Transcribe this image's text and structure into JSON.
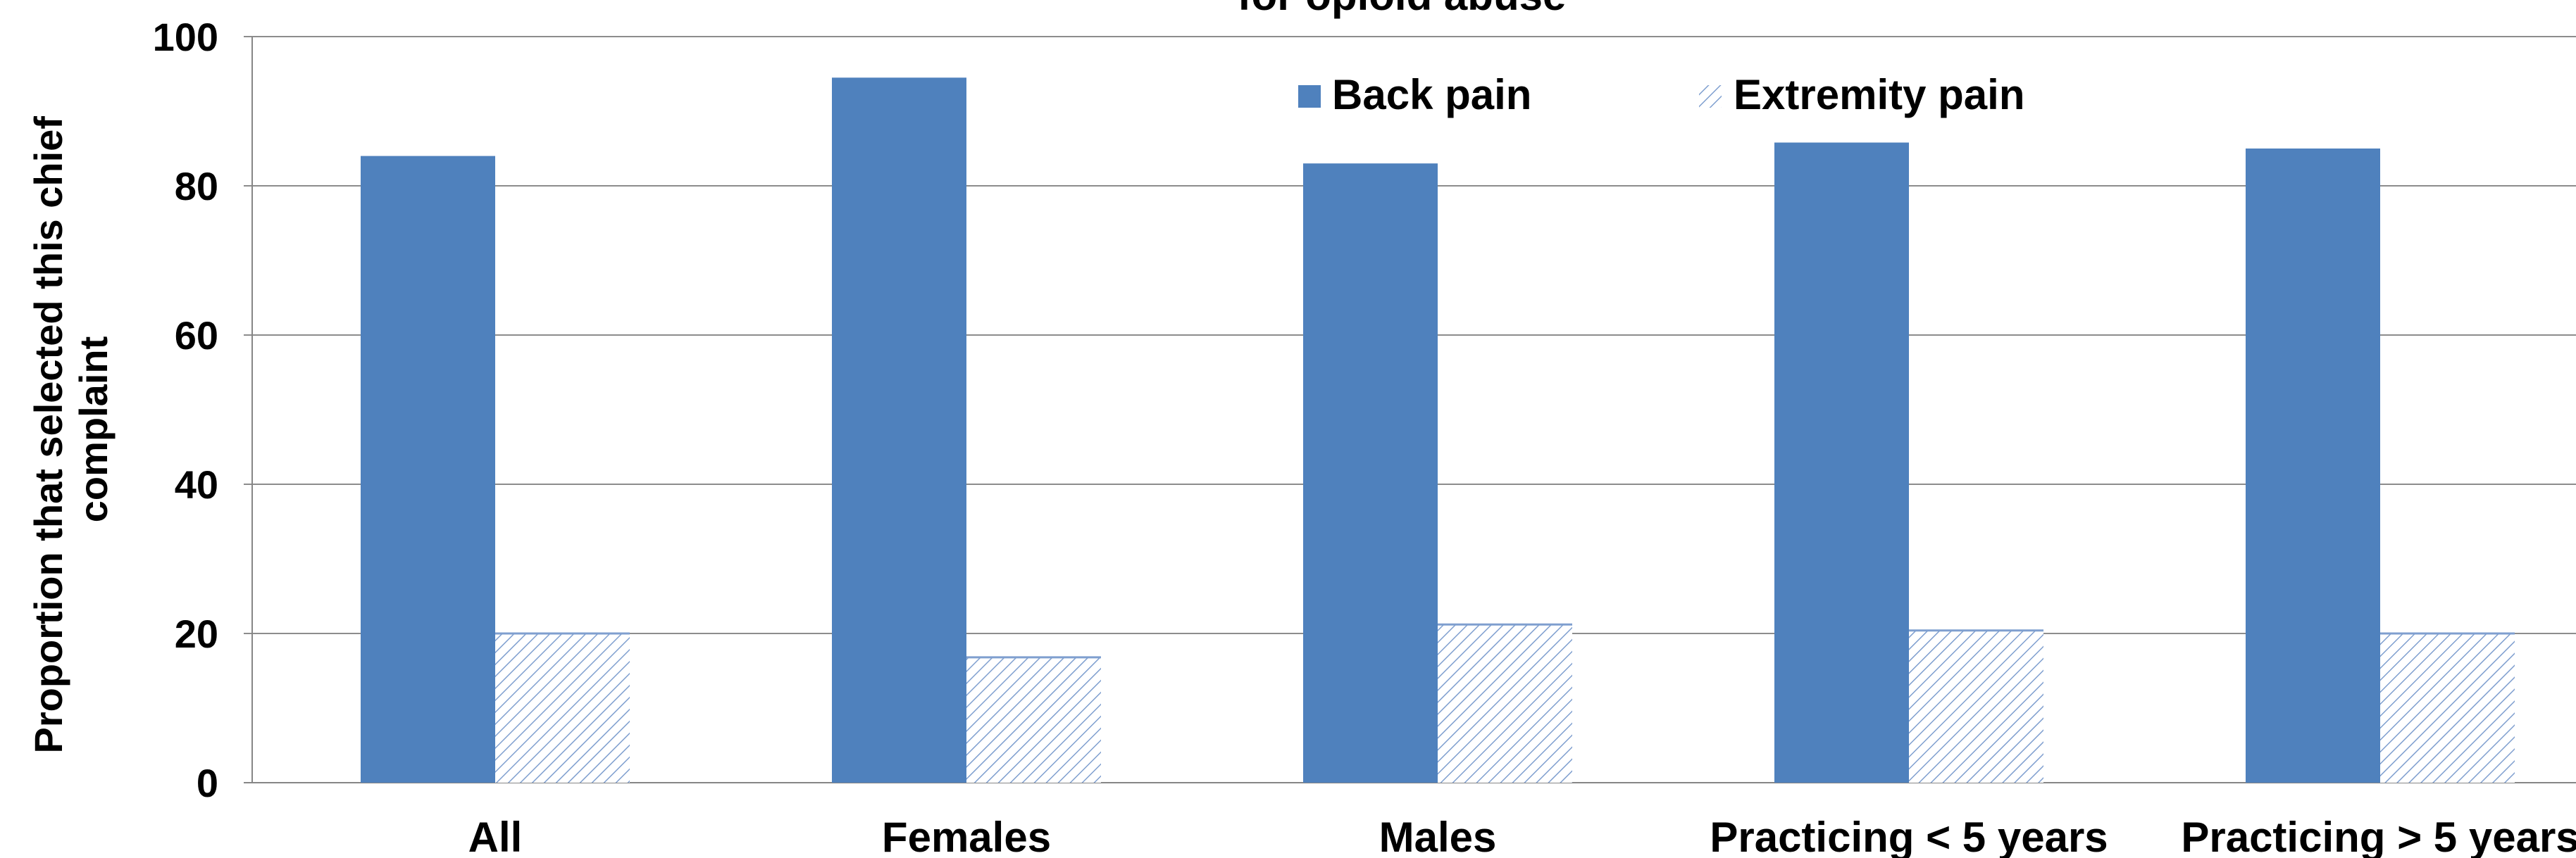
{
  "chart_data": {
    "type": "bar",
    "title": "for opioid abuse",
    "ylabel_line1": "Proportion that selected this chief",
    "ylabel_line2": "complaint",
    "xlabel": "",
    "categories": [
      "All",
      "Females",
      "Males",
      "Practicing < 5 years",
      "Practicing > 5 years"
    ],
    "ylim": [
      0,
      100
    ],
    "yticks": [
      "0",
      "20",
      "40",
      "60",
      "80",
      "100"
    ],
    "series": [
      {
        "name": "Back pain",
        "values": [
          84,
          94.5,
          83,
          85.8,
          85
        ],
        "color": "#4F81BD",
        "fill": "solid"
      },
      {
        "name": "Extremity pain",
        "values": [
          20,
          16.8,
          21.2,
          20.4,
          20
        ],
        "color": "#4F81BD",
        "fill": "hatched"
      }
    ],
    "grid": true,
    "legend_position": "top-center"
  }
}
